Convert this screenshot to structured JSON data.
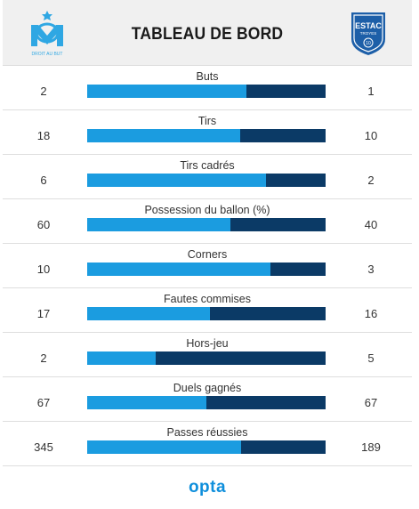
{
  "header": {
    "title": "TABLEAU DE BORD",
    "home_logo": {
      "icon": "om-crest-icon",
      "text": "DROIT AU BUT",
      "color": "#2fa7e3"
    },
    "away_logo": {
      "icon": "estac-crest-icon",
      "text": "ESTAC",
      "subtext": "TROYES",
      "number": "10",
      "color": "#1d5fa8"
    }
  },
  "colors": {
    "home": "#1b9ce0",
    "away": "#0b3a66",
    "brand": "#0f8fdc"
  },
  "stats": [
    {
      "label": "Buts",
      "home": "2",
      "away": "1",
      "home_share": 0.6667
    },
    {
      "label": "Tirs",
      "home": "18",
      "away": "10",
      "home_share": 0.6429
    },
    {
      "label": "Tirs cadrés",
      "home": "6",
      "away": "2",
      "home_share": 0.75
    },
    {
      "label": "Possession du ballon (%)",
      "home": "60",
      "away": "40",
      "home_share": 0.6
    },
    {
      "label": "Corners",
      "home": "10",
      "away": "3",
      "home_share": 0.7692
    },
    {
      "label": "Fautes commises",
      "home": "17",
      "away": "16",
      "home_share": 0.5152
    },
    {
      "label": "Hors-jeu",
      "home": "2",
      "away": "5",
      "home_share": 0.2857
    },
    {
      "label": "Duels gagnés",
      "home": "67",
      "away": "67",
      "home_share": 0.5
    },
    {
      "label": "Passes réussies",
      "home": "345",
      "away": "189",
      "home_share": 0.6461
    }
  ],
  "footer": {
    "brand": "opta"
  }
}
